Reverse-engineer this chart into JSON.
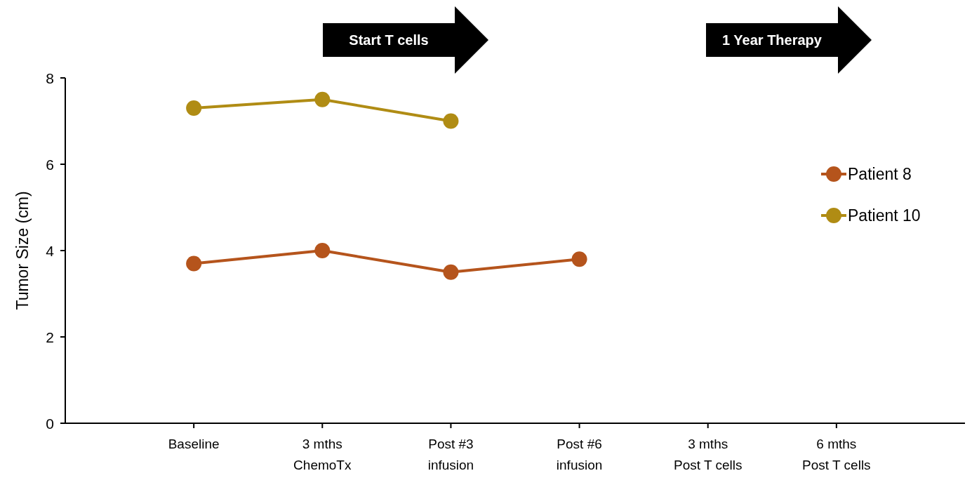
{
  "chart_data": {
    "type": "line",
    "ylabel": "Tumor Size (cm)",
    "categories": [
      "Baseline",
      "3 mths\nChemoTx",
      "Post #3\ninfusion",
      "Post #6\ninfusion",
      "3 mths\nPost T cells",
      "6 mths\nPost T cells"
    ],
    "series": [
      {
        "name": "Patient 8",
        "color": "#b5541c",
        "values": [
          3.7,
          4.0,
          3.5,
          3.8,
          null,
          null
        ]
      },
      {
        "name": "Patient 10",
        "color": "#b08c14",
        "values": [
          7.3,
          7.5,
          7.0,
          null,
          null,
          null
        ]
      }
    ],
    "ylim": [
      0,
      8
    ],
    "yticks": [
      0,
      2,
      4,
      6,
      8
    ],
    "marker": "circle",
    "legend": "right",
    "grid": false,
    "annotations": [
      "Start T cells",
      "1 Year Therapy"
    ]
  }
}
